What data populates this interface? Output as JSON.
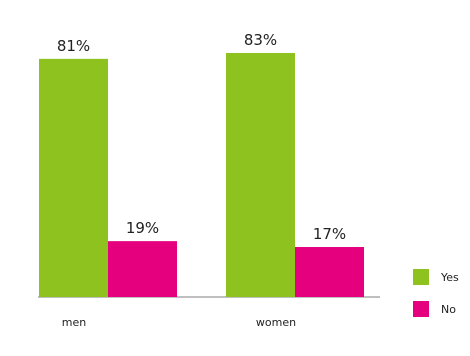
{
  "chart_data": {
    "type": "bar",
    "categories": [
      "men",
      "women"
    ],
    "series": [
      {
        "name": "Yes",
        "values": [
          81,
          83
        ],
        "labels": [
          "81%",
          "83%"
        ],
        "color": "#8dc21f"
      },
      {
        "name": "No",
        "values": [
          19,
          17
        ],
        "labels": [
          "19%",
          "17%"
        ],
        "color": "#e5007e"
      }
    ],
    "ylim": [
      0,
      100
    ],
    "grid": false,
    "legend_position": "right",
    "axis_color": "#aaaaaa"
  }
}
